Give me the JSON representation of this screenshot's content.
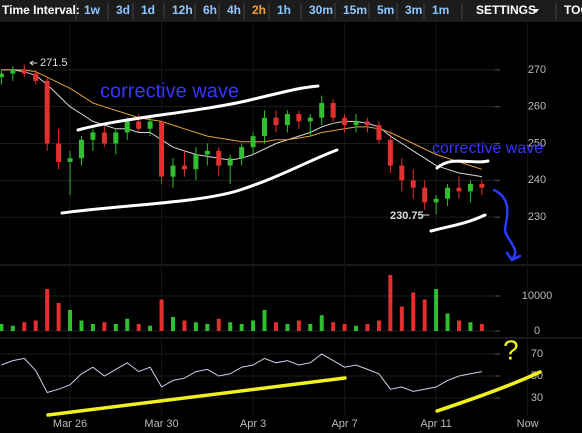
{
  "toolbar": {
    "label": "Time Interval:",
    "intervals": [
      {
        "label": "1w"
      },
      {
        "label": "3d"
      },
      {
        "label": "1d"
      },
      {
        "label": "12h"
      },
      {
        "label": "6h"
      },
      {
        "label": "4h"
      },
      {
        "label": "2h",
        "selected": true
      },
      {
        "label": "1h"
      },
      {
        "label": "30m"
      },
      {
        "label": "15m"
      },
      {
        "label": "5m"
      },
      {
        "label": "3m"
      },
      {
        "label": "1m"
      }
    ],
    "settings": "SETTINGS",
    "tools": "TOOLS"
  },
  "chart_data": {
    "type": "candlestick",
    "categories": [
      null,
      null,
      null,
      null,
      null,
      null,
      "Mar 26",
      null,
      null,
      null,
      null,
      null,
      null,
      null,
      "Mar 30",
      null,
      null,
      null,
      null,
      null,
      null,
      null,
      "Apr 3",
      null,
      null,
      null,
      null,
      null,
      null,
      null,
      "Apr 7",
      null,
      null,
      null,
      null,
      null,
      null,
      null,
      "Apr 11",
      null,
      null,
      null,
      null,
      null,
      null,
      null,
      "Now"
    ],
    "open": [
      268,
      269,
      270,
      269,
      267,
      250,
      245,
      246,
      251,
      253,
      250,
      253,
      256,
      254,
      256,
      241,
      244,
      243,
      247,
      248,
      244,
      246,
      249,
      252,
      257,
      255,
      258,
      256,
      257,
      261,
      257,
      255,
      256,
      255,
      251,
      244,
      240,
      238,
      234,
      235,
      238,
      237,
      239,
      null,
      null,
      null,
      null
    ],
    "high": [
      270,
      271,
      271.5,
      270,
      268,
      254,
      248,
      252,
      254,
      255,
      254,
      257,
      258,
      257,
      256,
      246,
      248,
      249,
      250,
      249,
      247,
      250,
      253,
      259,
      259,
      259,
      259,
      258,
      263,
      262,
      258,
      258,
      257,
      256,
      253,
      246,
      243,
      240,
      236,
      239,
      241,
      240,
      240,
      null,
      null,
      null,
      null
    ],
    "low": [
      266,
      267,
      268,
      266,
      248,
      243,
      236,
      244,
      248,
      249,
      247,
      251,
      253,
      252,
      239,
      238,
      241,
      240,
      244,
      241,
      239,
      244,
      247,
      250,
      253,
      253,
      254,
      252,
      255,
      256,
      253,
      253,
      253,
      250,
      242,
      237,
      235,
      232,
      230.75,
      233,
      235,
      234,
      236,
      null,
      null,
      null,
      null
    ],
    "close": [
      269,
      270,
      269,
      267,
      250,
      245,
      246,
      251,
      253,
      250,
      253,
      256,
      254,
      256,
      241,
      244,
      243,
      247,
      248,
      244,
      246,
      249,
      252,
      257,
      255,
      258,
      256,
      257,
      261,
      257,
      255,
      256,
      255,
      251,
      244,
      240,
      238,
      234,
      235,
      238,
      237,
      239,
      238,
      null,
      null,
      null,
      null
    ],
    "up_color": "#2fbf2f",
    "down_color": "#e23030",
    "overlays": [
      {
        "color": "#d8d8d8",
        "values": [
          270,
          270,
          269.5,
          268.5,
          266,
          263,
          260,
          258,
          256,
          255,
          254,
          254,
          253,
          253,
          251,
          249,
          248,
          247,
          246.5,
          246,
          245.5,
          246,
          247,
          248.5,
          250,
          251,
          252,
          253,
          254.5,
          255.5,
          256,
          256,
          255.5,
          254.5,
          252,
          250,
          248,
          246,
          244,
          243,
          242,
          241.5,
          241,
          null,
          null,
          null,
          null
        ]
      },
      {
        "color": "#e0a040",
        "values": [
          270,
          270,
          270,
          269.5,
          268,
          266.5,
          265,
          263,
          261,
          260,
          259,
          258,
          257,
          256.5,
          256,
          255,
          254,
          253,
          252,
          251.5,
          251,
          250.5,
          250.5,
          250.5,
          251,
          251,
          251.5,
          252,
          253,
          253.5,
          254,
          254.5,
          254.5,
          254,
          253,
          251.5,
          250,
          248.5,
          247,
          246,
          245,
          244,
          243,
          null,
          null,
          null,
          null
        ]
      }
    ],
    "ylim": [
      217,
      283
    ],
    "yticks": [
      230,
      240,
      250,
      260,
      270
    ],
    "grid": true,
    "volume": {
      "values": [
        2000,
        1500,
        2500,
        3000,
        12000,
        8000,
        6000,
        3000,
        2000,
        2500,
        2000,
        3500,
        2000,
        1500,
        9000,
        4000,
        3000,
        2500,
        2000,
        3500,
        2500,
        2000,
        3000,
        6000,
        2500,
        2000,
        3000,
        2000,
        4500,
        2500,
        2000,
        1500,
        2000,
        3000,
        16000,
        7000,
        11000,
        9000,
        12000,
        5000,
        3000,
        2500,
        2000,
        null,
        null,
        null,
        null
      ],
      "ylim": [
        0,
        18000
      ],
      "yticks": [
        0,
        10000
      ]
    },
    "rsi": {
      "color": "#c8d4e8",
      "values": [
        60,
        64,
        66,
        55,
        35,
        38,
        42,
        52,
        58,
        50,
        56,
        62,
        54,
        58,
        40,
        46,
        48,
        54,
        56,
        50,
        52,
        58,
        60,
        66,
        62,
        64,
        60,
        62,
        70,
        64,
        58,
        60,
        56,
        52,
        38,
        40,
        36,
        38,
        40,
        46,
        50,
        52,
        54,
        null,
        null,
        null,
        null
      ],
      "ylim": [
        15,
        80
      ],
      "yticks": [
        30,
        50,
        70
      ]
    },
    "annotations": [
      {
        "text": "corrective wave",
        "color": "#3535ff"
      },
      {
        "text": "corrective wave",
        "color": "#3535ff"
      },
      {
        "text": "?",
        "color": "#f0f020"
      }
    ]
  }
}
